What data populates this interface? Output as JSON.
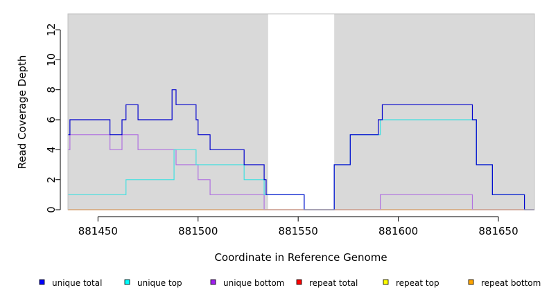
{
  "chart_data": {
    "type": "line",
    "title": "",
    "xlabel": "Coordinate in Reference Genome",
    "ylabel": "Read Coverage Depth",
    "xlim": [
      881435,
      881668
    ],
    "ylim": [
      0,
      13
    ],
    "x_ticks": [
      881450,
      881500,
      881550,
      881600,
      881650
    ],
    "x_tick_labels": [
      "881450",
      "881500",
      "881550",
      "881600",
      "881650"
    ],
    "y_ticks": [
      0,
      2,
      4,
      6,
      8,
      10,
      12
    ],
    "y_tick_labels": [
      "0",
      "2",
      "4",
      "6",
      "8",
      "10",
      "12"
    ],
    "shaded_regions": [
      [
        881435,
        881535
      ],
      [
        881568,
        881668
      ]
    ],
    "shade_color": "#d9d9d9",
    "legend_placement": "bottom",
    "series": [
      {
        "name": "unique total",
        "color": "#0000cd",
        "steps": [
          [
            881435,
            5
          ],
          [
            881436,
            6
          ],
          [
            881456,
            5
          ],
          [
            881462,
            6
          ],
          [
            881464,
            7
          ],
          [
            881470,
            6
          ],
          [
            881487,
            8
          ],
          [
            881489,
            7
          ],
          [
            881499,
            6
          ],
          [
            881500,
            5
          ],
          [
            881506,
            4
          ],
          [
            881523,
            3
          ],
          [
            881533,
            2
          ],
          [
            881534,
            1
          ],
          [
            881553,
            0
          ],
          [
            881568,
            3
          ],
          [
            881576,
            5
          ],
          [
            881590,
            6
          ],
          [
            881592,
            7
          ],
          [
            881637,
            6
          ],
          [
            881639,
            3
          ],
          [
            881647,
            1
          ],
          [
            881663,
            0
          ],
          [
            881668,
            0
          ]
        ]
      },
      {
        "name": "unique top",
        "color": "#40e0e0",
        "steps": [
          [
            881435,
            1
          ],
          [
            881464,
            2
          ],
          [
            881488,
            4
          ],
          [
            881499,
            3
          ],
          [
            881523,
            2
          ],
          [
            881533,
            1
          ],
          [
            881553,
            0
          ],
          [
            881568,
            3
          ],
          [
            881576,
            5
          ],
          [
            881591,
            6
          ],
          [
            881639,
            3
          ],
          [
            881647,
            1
          ],
          [
            881663,
            0
          ],
          [
            881668,
            0
          ]
        ]
      },
      {
        "name": "unique bottom",
        "color": "#b070e0",
        "steps": [
          [
            881435,
            4
          ],
          [
            881436,
            5
          ],
          [
            881456,
            4
          ],
          [
            881462,
            5
          ],
          [
            881470,
            4
          ],
          [
            881489,
            3
          ],
          [
            881500,
            2
          ],
          [
            881506,
            1
          ],
          [
            881533,
            0
          ],
          [
            881591,
            1
          ],
          [
            881637,
            0
          ],
          [
            881668,
            0
          ]
        ]
      },
      {
        "name": "repeat total",
        "color": "#ff0000",
        "steps": [
          [
            881435,
            0
          ],
          [
            881668,
            0
          ]
        ]
      },
      {
        "name": "repeat top",
        "color": "#ffff00",
        "steps": [
          [
            881435,
            0
          ],
          [
            881668,
            0
          ]
        ]
      },
      {
        "name": "repeat bottom",
        "color": "#ffa500",
        "steps": [
          [
            881435,
            0
          ],
          [
            881668,
            0
          ]
        ]
      }
    ],
    "legend": [
      {
        "label": "unique total",
        "color": "#0000ff"
      },
      {
        "label": "unique top",
        "color": "#00ffff"
      },
      {
        "label": "unique bottom",
        "color": "#a020f0"
      },
      {
        "label": "repeat total",
        "color": "#ff0000"
      },
      {
        "label": "repeat top",
        "color": "#ffff00"
      },
      {
        "label": "repeat bottom",
        "color": "#ffa500"
      }
    ]
  }
}
